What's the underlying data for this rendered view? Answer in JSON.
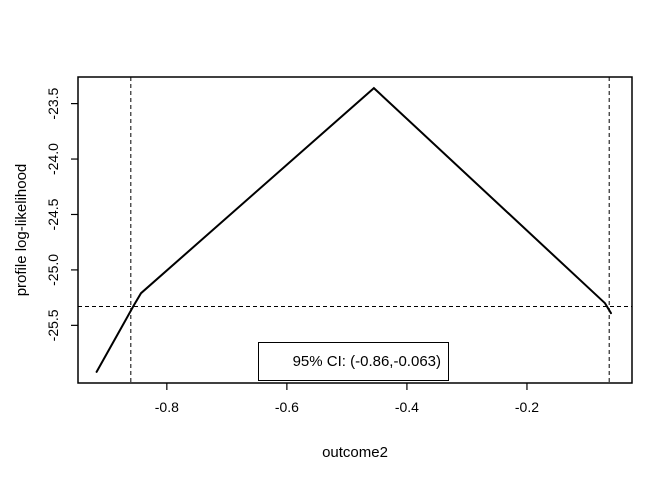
{
  "window": {
    "background": "#ffffff",
    "foreground": "#000000"
  },
  "labels": {
    "xlabel": "outcome2",
    "ylabel": "profile log-likelihood",
    "legend_text": "95% CI: (-0.86,-0.063)"
  },
  "chart_data": {
    "type": "line",
    "title": "",
    "xlabel": "outcome2",
    "ylabel": "profile log-likelihood",
    "xlim": [
      -0.948,
      -0.025
    ],
    "ylim": [
      -26.02,
      -23.26
    ],
    "grid": false,
    "x_ticks": {
      "values": [
        -0.8,
        -0.6,
        -0.4,
        -0.2
      ],
      "labels": [
        "-0.8",
        "-0.6",
        "-0.4",
        "-0.2"
      ]
    },
    "y_ticks": {
      "values": [
        -23.5,
        -24.0,
        -24.5,
        -25.0,
        -25.5
      ],
      "labels": [
        "-23.5",
        "-24.0",
        "-24.5",
        "-25.0",
        "-25.5"
      ]
    },
    "series": [
      {
        "name": "profile-log-likelihood-curve",
        "color": "#000000",
        "line_width": 2,
        "points": [
          {
            "x": -0.917,
            "y": -25.92
          },
          {
            "x": -0.855,
            "y": -25.32
          },
          {
            "x": -0.843,
            "y": -25.21
          },
          {
            "x": -0.455,
            "y": -23.36
          },
          {
            "x": -0.07,
            "y": -25.3
          },
          {
            "x": -0.06,
            "y": -25.39
          }
        ]
      }
    ],
    "reference_lines": {
      "horizontal": [
        {
          "y": -25.33,
          "style": "dashed",
          "color": "#000000"
        }
      ],
      "vertical": [
        {
          "x": -0.86,
          "style": "dashed",
          "color": "#000000"
        },
        {
          "x": -0.063,
          "style": "dashed",
          "color": "#000000"
        }
      ]
    },
    "peak": {
      "x": -0.455,
      "y": -23.36
    },
    "ci": {
      "level": "95%",
      "lower": -0.86,
      "upper": -0.063
    },
    "legend": {
      "text": "95% CI: (-0.86,-0.063)",
      "position": "bottom-center"
    }
  }
}
